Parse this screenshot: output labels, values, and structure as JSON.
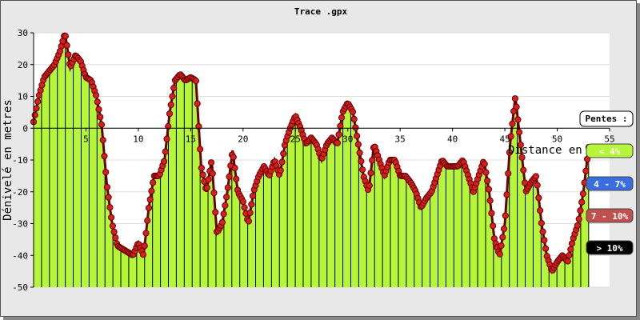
{
  "chart_data": {
    "type": "area",
    "title": "Trace .gpx",
    "xlabel": "Distance en km",
    "ylabel": "Dénivelé en metres",
    "xlim": [
      0,
      55
    ],
    "ylim": [
      -50,
      30
    ],
    "x_ticks": [
      "5",
      "10",
      "15",
      "20",
      "25",
      "30",
      "35",
      "40",
      "45",
      "50",
      "55"
    ],
    "y_ticks": [
      "30",
      "20",
      "10",
      "0",
      "-10",
      "-20",
      "-30",
      "-40",
      "-50"
    ],
    "grid": true,
    "legend_placement": "right",
    "legend": {
      "title": "Pentes :",
      "entries": [
        {
          "label": "< 4%",
          "color": "#b5f53a",
          "text_color": "#ffffff"
        },
        {
          "label": "4 - 7%",
          "color": "#3a6ee0",
          "text_color": "#ffffff"
        },
        {
          "label": "7 - 10%",
          "color": "#c0504d",
          "text_color": "#ffffff"
        },
        {
          "label": "> 10%",
          "color": "#000000",
          "text_color": "#ffffff"
        }
      ]
    },
    "colors": {
      "fill": "#b5f53a",
      "line": "#000000",
      "marker": "#d42020",
      "marker_edge": "#6a0000"
    },
    "series": [
      {
        "x": [
          0,
          0.5,
          1,
          1.5,
          2,
          2.5,
          3,
          3.5,
          4,
          4.5,
          5,
          5.5,
          6,
          6.5,
          7,
          7.5,
          8,
          8.5,
          9,
          9.5,
          10,
          10.5,
          11,
          11.5,
          12,
          12.5,
          13,
          13.5,
          14,
          14.5,
          15,
          15.5,
          16,
          16.5,
          17,
          17.5,
          18,
          18.5,
          19,
          19.5,
          20,
          20.5,
          21,
          21.5,
          22,
          22.5,
          23,
          23.5,
          24,
          24.5,
          25,
          25.5,
          26,
          26.5,
          27,
          27.5,
          28,
          28.5,
          29,
          29.5,
          30,
          30.5,
          31,
          31.5,
          32,
          32.5,
          33,
          33.5,
          34,
          34.5,
          35,
          35.5,
          36,
          36.5,
          37,
          37.5,
          38,
          38.5,
          39,
          39.5,
          40,
          40.5,
          41,
          41.5,
          42,
          42.5,
          43,
          43.5,
          44,
          44.5,
          45,
          45.5,
          46,
          46.5,
          47,
          47.5,
          48,
          48.5,
          49,
          49.5,
          50,
          50.5,
          51,
          51.5,
          52,
          52.5,
          53
        ],
        "y": [
          2,
          10,
          16,
          18,
          20,
          24,
          30,
          19,
          23,
          21,
          16,
          15,
          10,
          1,
          -18,
          -30,
          -37,
          -38,
          -39,
          -40,
          -36,
          -40,
          -25,
          -15,
          -15,
          -10,
          5,
          15,
          17,
          15,
          16,
          15,
          -12,
          -20,
          -10,
          -33,
          -30,
          -20,
          -7,
          -20,
          -23,
          -30,
          -20,
          -15,
          -12,
          -15,
          -10,
          -15,
          -5,
          0,
          4,
          0,
          -5,
          -3,
          -5,
          -10,
          -5,
          -3,
          -5,
          5,
          8,
          5,
          -5,
          -15,
          -20,
          -5,
          -10,
          -15,
          -10,
          -10,
          -15,
          -15,
          -17,
          -20,
          -25,
          -22,
          -20,
          -15,
          -10,
          -12,
          -12,
          -12,
          -10,
          -15,
          -20,
          -15,
          -10,
          -20,
          -35,
          -40,
          -30,
          -5,
          10,
          -5,
          -20,
          -17,
          -15,
          -30,
          -40,
          -45,
          -42,
          -40,
          -42,
          -35,
          -30,
          -20,
          -6
        ]
      }
    ]
  }
}
